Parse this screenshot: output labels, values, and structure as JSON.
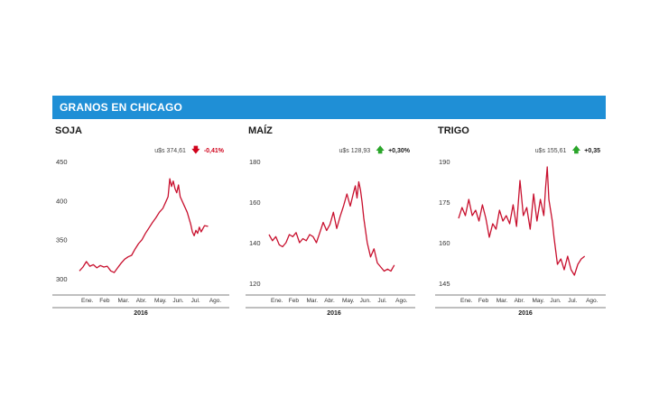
{
  "header": {
    "title": "GRANOS EN CHICAGO"
  },
  "colors": {
    "header_bg": "#1f8fd6",
    "line": "#c8102e",
    "down": "#d0021b",
    "up": "#2aa52a"
  },
  "panels": [
    {
      "title": "SOJA",
      "price": "u$s 374,61",
      "change": "-0,41%",
      "direction": "down"
    },
    {
      "title": "MAÍZ",
      "price": "u$s 128,93",
      "change": "+0,30%",
      "direction": "up"
    },
    {
      "title": "TRIGO",
      "price": "u$s 155,61",
      "change": "+0,35",
      "direction": "up"
    }
  ],
  "chart_data": [
    {
      "type": "line",
      "title": "SOJA",
      "xlabel": "2016",
      "x_ticks": [
        "Ene.",
        "Feb",
        "Mar.",
        "Abr.",
        "May.",
        "Jun.",
        "Jul.",
        "Ago."
      ],
      "y_ticks": [
        300,
        350,
        400,
        450
      ],
      "ylim": [
        300,
        450
      ],
      "xlim": [
        0,
        8
      ],
      "x": [
        0,
        0.2,
        0.4,
        0.6,
        0.8,
        1.0,
        1.2,
        1.4,
        1.6,
        1.8,
        2.0,
        2.2,
        2.4,
        2.6,
        2.8,
        3.0,
        3.2,
        3.4,
        3.6,
        3.8,
        4.0,
        4.2,
        4.4,
        4.6,
        4.8,
        5.0,
        5.1,
        5.2,
        5.3,
        5.4,
        5.5,
        5.6,
        5.7,
        5.8,
        6.0,
        6.2,
        6.4,
        6.5,
        6.6,
        6.7,
        6.8,
        6.9,
        7.0,
        7.2,
        7.4
      ],
      "series": [
        {
          "values": [
            310,
            315,
            322,
            316,
            318,
            314,
            317,
            315,
            316,
            310,
            308,
            314,
            320,
            325,
            328,
            330,
            338,
            345,
            350,
            358,
            365,
            372,
            378,
            385,
            390,
            400,
            405,
            428,
            418,
            425,
            415,
            410,
            420,
            405,
            395,
            385,
            370,
            360,
            355,
            362,
            358,
            366,
            360,
            368,
            367
          ]
        }
      ]
    },
    {
      "type": "line",
      "title": "MAÍZ",
      "xlabel": "2016",
      "x_ticks": [
        "Ene.",
        "Feb",
        "Mar.",
        "Abr.",
        "May.",
        "Jun.",
        "Jul.",
        "Ago."
      ],
      "y_ticks": [
        120,
        140,
        160,
        180
      ],
      "ylim": [
        120,
        180
      ],
      "xlim": [
        0,
        8
      ],
      "x": [
        0,
        0.2,
        0.4,
        0.6,
        0.8,
        1.0,
        1.2,
        1.4,
        1.6,
        1.8,
        2.0,
        2.2,
        2.4,
        2.6,
        2.8,
        3.0,
        3.2,
        3.4,
        3.6,
        3.8,
        4.0,
        4.2,
        4.4,
        4.6,
        4.8,
        5.0,
        5.1,
        5.2,
        5.3,
        5.4,
        5.5,
        5.6,
        5.8,
        6.0,
        6.2,
        6.4,
        6.6,
        6.8,
        7.0,
        7.2,
        7.4
      ],
      "series": [
        {
          "values": [
            144,
            141,
            143,
            139,
            138,
            140,
            144,
            143,
            145,
            140,
            142,
            141,
            144,
            143,
            140,
            145,
            150,
            146,
            149,
            155,
            147,
            153,
            158,
            164,
            158,
            165,
            168,
            162,
            170,
            166,
            160,
            152,
            140,
            133,
            137,
            130,
            128,
            126,
            127,
            126,
            129
          ]
        }
      ]
    },
    {
      "type": "line",
      "title": "TRIGO",
      "xlabel": "2016",
      "x_ticks": [
        "Ene.",
        "Feb",
        "Mar.",
        "Abr.",
        "May.",
        "Jun.",
        "Jul.",
        "Ago."
      ],
      "y_ticks": [
        145,
        160,
        175,
        190
      ],
      "ylim": [
        145,
        190
      ],
      "xlim": [
        0,
        8
      ],
      "x": [
        0,
        0.2,
        0.4,
        0.6,
        0.8,
        1.0,
        1.2,
        1.4,
        1.6,
        1.8,
        2.0,
        2.2,
        2.4,
        2.6,
        2.8,
        3.0,
        3.2,
        3.4,
        3.6,
        3.8,
        4.0,
        4.2,
        4.4,
        4.6,
        4.8,
        5.0,
        5.1,
        5.2,
        5.3,
        5.4,
        5.5,
        5.6,
        5.8,
        6.0,
        6.2,
        6.4,
        6.6,
        6.8,
        7.0,
        7.2,
        7.4
      ],
      "series": [
        {
          "values": [
            169,
            173,
            170,
            176,
            170,
            172,
            168,
            174,
            169,
            162,
            167,
            165,
            172,
            168,
            170,
            167,
            174,
            166,
            183,
            170,
            173,
            165,
            178,
            168,
            176,
            170,
            180,
            188,
            176,
            172,
            168,
            162,
            152,
            154,
            150,
            155,
            150,
            148,
            152,
            154,
            155
          ]
        }
      ]
    }
  ]
}
